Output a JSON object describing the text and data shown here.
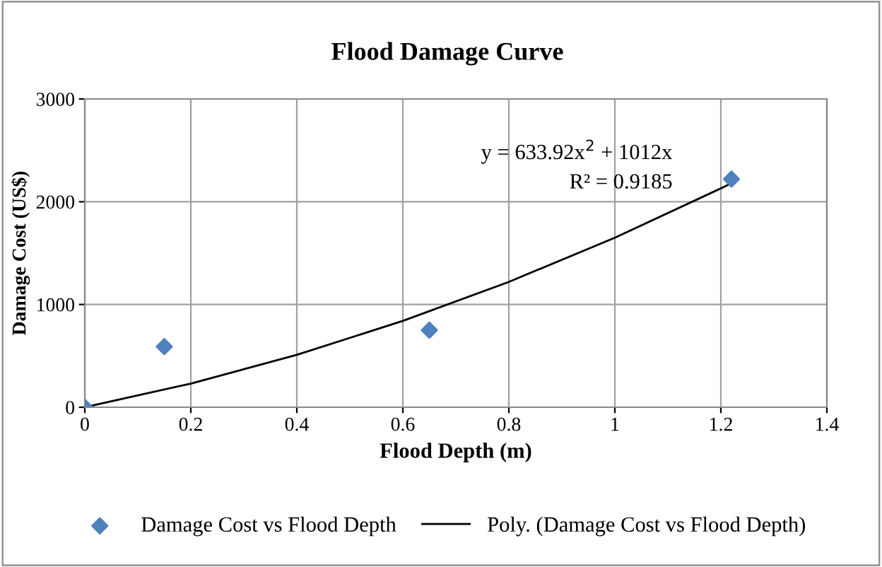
{
  "chart_data": {
    "type": "scatter",
    "title": "Flood Damage Curve",
    "xlabel": "Flood Depth (m)",
    "ylabel": "Damage Cost (US$)",
    "xlim": [
      0,
      1.4
    ],
    "xticks": [
      0,
      0.2,
      0.4,
      0.6,
      0.8,
      1,
      1.2,
      1.4
    ],
    "ylim": [
      0,
      3000
    ],
    "yticks": [
      0,
      1000,
      2000,
      3000
    ],
    "grid": true,
    "legend": "bottom",
    "series": [
      {
        "name": "Damage Cost vs Flood Depth",
        "marker": "diamond",
        "color": "#4f81bd",
        "x": [
          0,
          0.15,
          0.65,
          1.22
        ],
        "values": [
          0,
          590,
          750,
          2220
        ]
      },
      {
        "name": "Poly. (Damage Cost vs Flood Depth)",
        "type": "line",
        "color": "#000000",
        "line_style": "solid",
        "x": [
          0,
          0.2,
          0.4,
          0.6,
          0.8,
          1.0,
          1.2,
          1.22
        ],
        "values": [
          0,
          230,
          510,
          840,
          1220,
          1650,
          2130,
          2180
        ]
      }
    ],
    "annotations": [
      {
        "text": "y = 633.92x$^{2}$ + 1012x",
        "x": 1.22,
        "y": 2180
      },
      {
        "text": "R² = 0.9185",
        "x": 1.22,
        "y": 2180
      }
    ]
  }
}
